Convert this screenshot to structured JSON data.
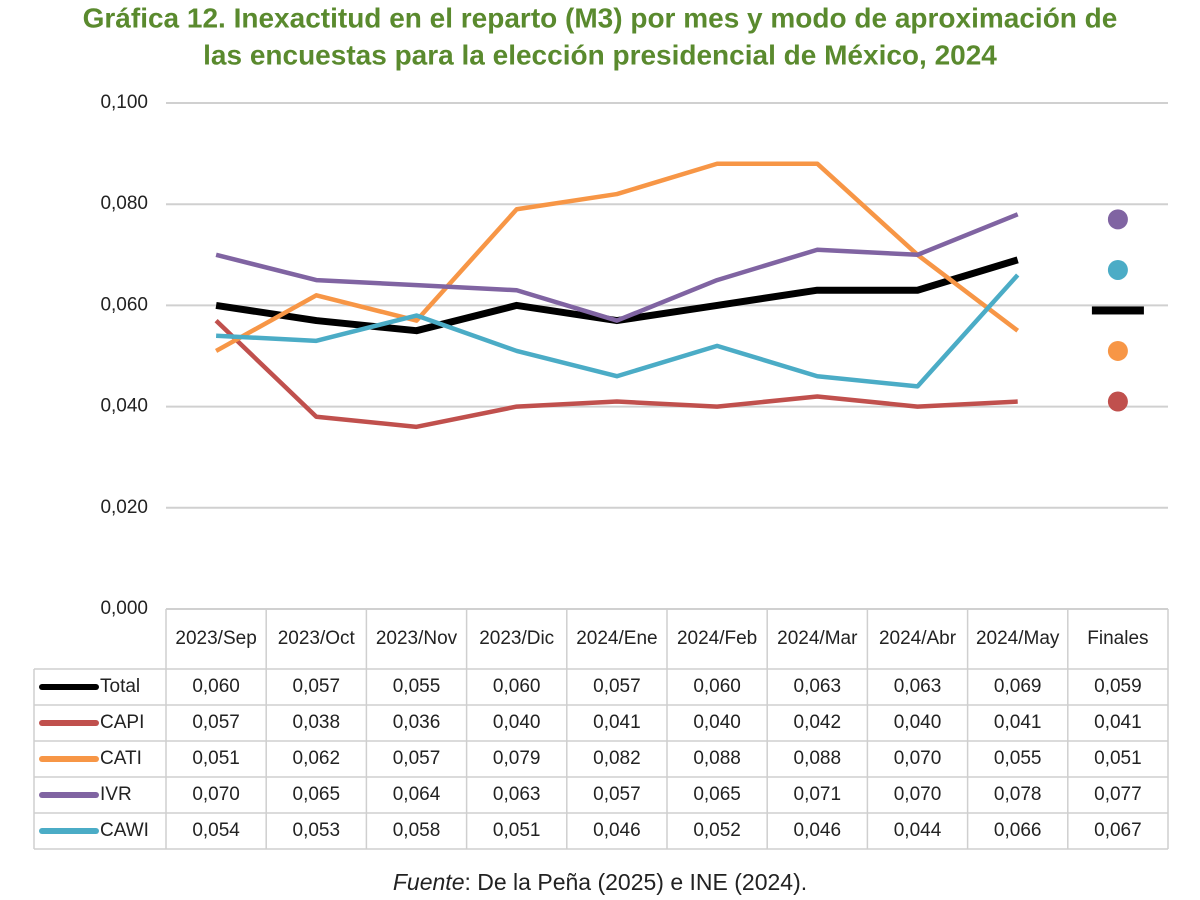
{
  "chart_data": {
    "type": "line",
    "title": [
      "Gráfica 12. Inexactitud en el reparto (M3) por mes y modo de aproximación de",
      "las encuestas para la elección presidencial de México, 2024"
    ],
    "categories": [
      "2023/Sep",
      "2023/Oct",
      "2023/Nov",
      "2023/Dic",
      "2024/Ene",
      "2024/Feb",
      "2024/Mar",
      "2024/Abr",
      "2024/May"
    ],
    "final_category": "Finales",
    "ylim": [
      0,
      0.1
    ],
    "yticks": [
      {
        "value": 0,
        "label": "0,000"
      },
      {
        "value": 0.02,
        "label": "0,020"
      },
      {
        "value": 0.04,
        "label": "0,040"
      },
      {
        "value": 0.06,
        "label": "0,060"
      },
      {
        "value": 0.08,
        "label": "0,080"
      },
      {
        "value": 0.1,
        "label": "0,100"
      }
    ],
    "grid": true,
    "series": [
      {
        "name": "Total",
        "color": "#000000",
        "final_marker": "dash",
        "values": [
          0.06,
          0.057,
          0.055,
          0.06,
          0.057,
          0.06,
          0.063,
          0.063,
          0.069
        ],
        "value_labels": [
          "0,060",
          "0,057",
          "0,055",
          "0,060",
          "0,057",
          "0,060",
          "0,063",
          "0,063",
          "0,069"
        ],
        "final": 0.059,
        "final_label": "0,059"
      },
      {
        "name": "CAPI",
        "color": "#c0504d",
        "final_marker": "circle",
        "values": [
          0.057,
          0.038,
          0.036,
          0.04,
          0.041,
          0.04,
          0.042,
          0.04,
          0.041
        ],
        "value_labels": [
          "0,057",
          "0,038",
          "0,036",
          "0,040",
          "0,041",
          "0,040",
          "0,042",
          "0,040",
          "0,041"
        ],
        "final": 0.041,
        "final_label": "0,041"
      },
      {
        "name": "CATI",
        "color": "#f79646",
        "final_marker": "circle",
        "values": [
          0.051,
          0.062,
          0.057,
          0.079,
          0.082,
          0.088,
          0.088,
          0.07,
          0.055
        ],
        "value_labels": [
          "0,051",
          "0,062",
          "0,057",
          "0,079",
          "0,082",
          "0,088",
          "0,088",
          "0,070",
          "0,055"
        ],
        "final": 0.051,
        "final_label": "0,051"
      },
      {
        "name": "IVR",
        "color": "#8064a2",
        "final_marker": "circle",
        "values": [
          0.07,
          0.065,
          0.064,
          0.063,
          0.057,
          0.065,
          0.071,
          0.07,
          0.078
        ],
        "value_labels": [
          "0,070",
          "0,065",
          "0,064",
          "0,063",
          "0,057",
          "0,065",
          "0,071",
          "0,070",
          "0,078"
        ],
        "final": 0.077,
        "final_label": "0,077"
      },
      {
        "name": "CAWI",
        "color": "#4bacc6",
        "final_marker": "circle",
        "values": [
          0.054,
          0.053,
          0.058,
          0.051,
          0.046,
          0.052,
          0.046,
          0.044,
          0.066
        ],
        "value_labels": [
          "0,054",
          "0,053",
          "0,058",
          "0,051",
          "0,046",
          "0,052",
          "0,046",
          "0,044",
          "0,066"
        ],
        "final": 0.067,
        "final_label": "0,067"
      }
    ],
    "source": {
      "label": "Fuente",
      "text": ": De la Peña (2025) e INE (2024)."
    }
  }
}
